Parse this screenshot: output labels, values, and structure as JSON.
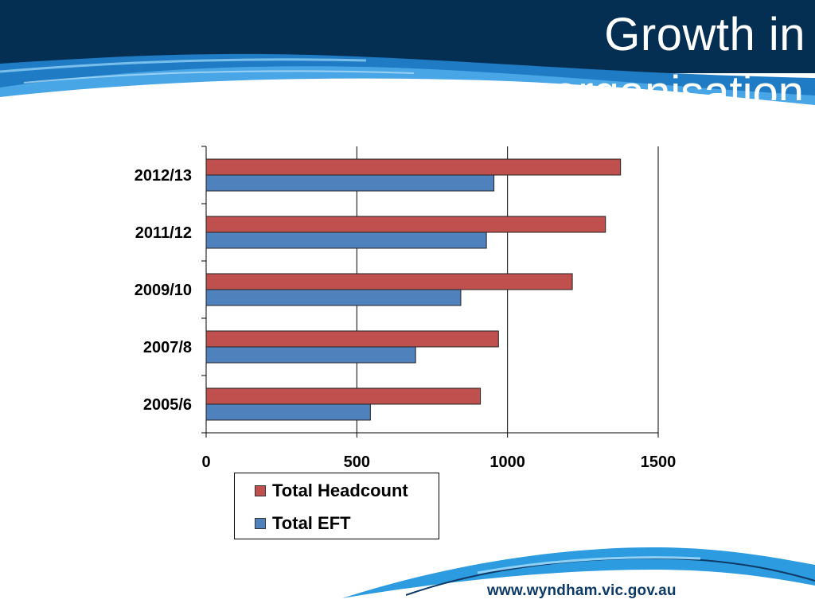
{
  "slide": {
    "title_line1": "Growth in",
    "title_line2": "organisation",
    "footer_url": "www.wyndham.vic.gov.au"
  },
  "colors": {
    "header_dark": "#052f52",
    "wave_blue": "#2c8fd6",
    "headcount": "#c0504d",
    "eft": "#4f81bd"
  },
  "chart_data": {
    "type": "bar",
    "orientation": "horizontal",
    "categories": [
      "2005/6",
      "2007/8",
      "2009/10",
      "2011/12",
      "2012/13"
    ],
    "series": [
      {
        "name": "Total Headcount",
        "values": [
          910,
          970,
          1215,
          1325,
          1375
        ]
      },
      {
        "name": "Total EFT",
        "values": [
          545,
          695,
          845,
          930,
          955
        ]
      }
    ],
    "xlim": [
      0,
      1500
    ],
    "xticks": [
      0,
      500,
      1000,
      1500
    ],
    "grid": true,
    "legend": "bottom"
  }
}
